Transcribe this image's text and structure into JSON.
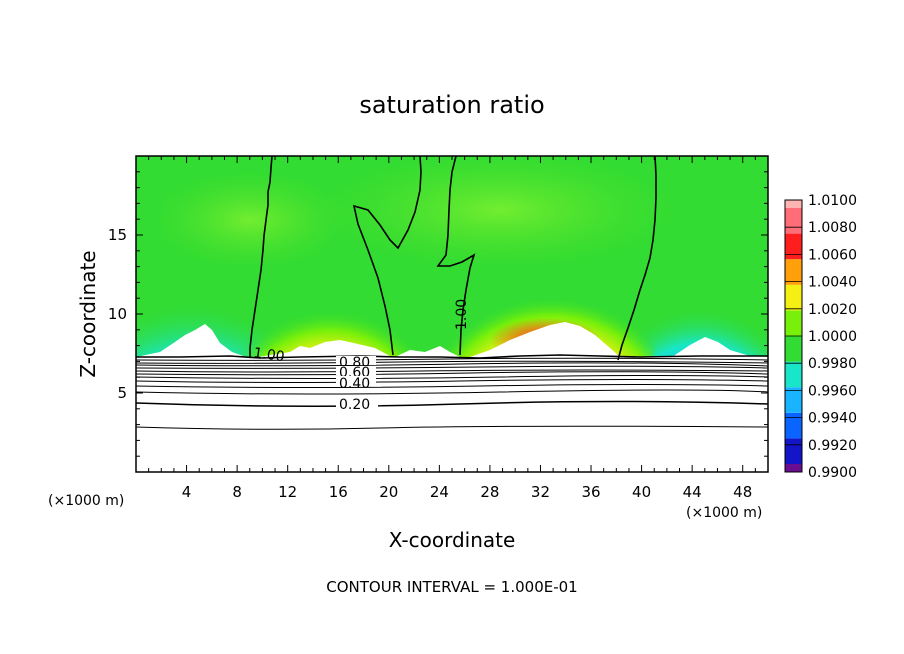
{
  "chart_data": {
    "type": "heatmap",
    "title": "saturation ratio",
    "xlabel": "X-coordinate",
    "ylabel": "Z-coordinate",
    "x_unit_left": "(×1000 m)",
    "x_unit_right": "(×1000 m)",
    "xlim": [
      0,
      50
    ],
    "ylim": [
      0,
      20
    ],
    "x_ticks": [
      4,
      8,
      12,
      16,
      20,
      24,
      28,
      32,
      36,
      40,
      44,
      48
    ],
    "y_ticks": [
      5,
      10,
      15
    ],
    "footer": "CONTOUR INTERVAL = 1.000E-01",
    "colorbar": {
      "levels": [
        "0.9900",
        "0.9920",
        "0.9940",
        "0.9960",
        "0.9980",
        "1.0000",
        "1.0020",
        "1.0040",
        "1.0060",
        "1.0080",
        "1.0100"
      ],
      "colors": [
        "#6a0d91",
        "#1414c8",
        "#0a64ff",
        "#19b4ff",
        "#19e6c8",
        "#32dc32",
        "#78f00a",
        "#f5f014",
        "#ffa00a",
        "#ff1e1e",
        "#ff6e78",
        "#ffb4b4"
      ]
    },
    "contour_labels": [
      {
        "text": "1.00",
        "x": 10.6,
        "z": 7.4
      },
      {
        "text": "1.00",
        "x": 26.3,
        "z": 10.0
      },
      {
        "text": "0.80",
        "x": 35.2,
        "z": 7.0
      },
      {
        "text": "0.60",
        "x": 35.2,
        "z": 6.4
      },
      {
        "text": "0.40",
        "x": 35.2,
        "z": 5.8
      },
      {
        "text": "0.20",
        "x": 35.2,
        "z": 4.5
      }
    ],
    "subsaturated_contours_z": [
      7.2,
      7.0,
      6.8,
      6.6,
      6.4,
      6.2,
      6.0,
      5.8,
      5.5,
      5.0,
      4.5,
      3.0
    ],
    "cloud_regions": [
      {
        "x_center": 15.0,
        "peak": 1.007,
        "x_range": [
          9.0,
          20.5
        ]
      },
      {
        "x_center": 31.5,
        "peak": 1.0085,
        "x_range": [
          25.7,
          38.0
        ]
      }
    ],
    "dry_regions": [
      {
        "x_center": 4.5,
        "min": 0.9905,
        "x_range": [
          0,
          9
        ]
      },
      {
        "x_center": 45.0,
        "min": 0.991,
        "x_range": [
          40,
          50
        ]
      }
    ]
  }
}
